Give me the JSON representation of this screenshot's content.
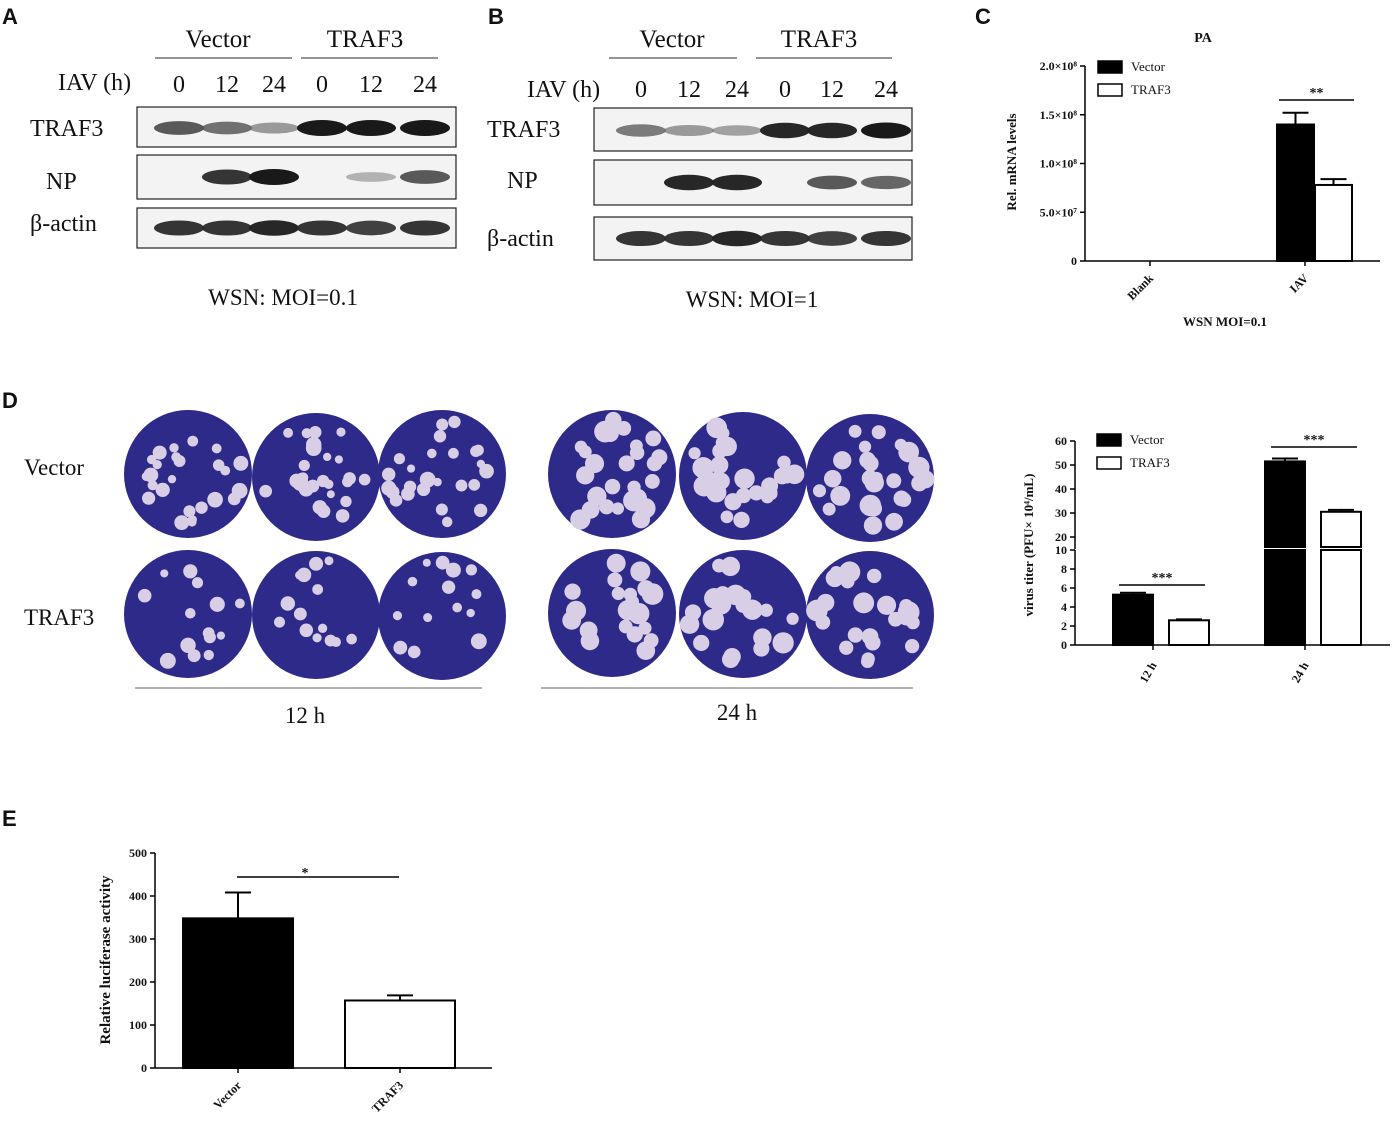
{
  "panels": {
    "a": "A",
    "b": "B",
    "c": "C",
    "d": "D",
    "e": "E"
  },
  "blot_a": {
    "group1": "Vector",
    "group2": "TRAF3",
    "time_label": "IAV (h)",
    "lanes": [
      "0",
      "12",
      "24",
      "0",
      "12",
      "24"
    ],
    "rows": [
      "TRAF3",
      "NP",
      "β-actin"
    ],
    "caption": "WSN: MOI=0.1",
    "band_intensity": {
      "TRAF3": [
        0.75,
        0.65,
        0.45,
        1.0,
        1.0,
        1.0
      ],
      "NP": [
        0.0,
        0.9,
        1.0,
        0.0,
        0.3,
        0.75
      ],
      "β-actin": [
        0.9,
        0.9,
        0.95,
        0.9,
        0.85,
        0.9
      ]
    }
  },
  "blot_b": {
    "group1": "Vector",
    "group2": "TRAF3",
    "time_label": "IAV (h)",
    "lanes": [
      "0",
      "12",
      "24",
      "0",
      "12",
      "24"
    ],
    "rows": [
      "TRAF3",
      "NP",
      "β-actin"
    ],
    "caption": "WSN: MOI=1",
    "band_intensity": {
      "TRAF3": [
        0.6,
        0.45,
        0.4,
        0.95,
        0.95,
        1.0
      ],
      "NP": [
        0.0,
        0.95,
        0.95,
        0.0,
        0.75,
        0.7
      ],
      "β-actin": [
        0.9,
        0.9,
        0.95,
        0.9,
        0.85,
        0.9
      ]
    }
  },
  "plaque": {
    "rows": [
      "Vector",
      "TRAF3"
    ],
    "groups": [
      "12 h",
      "24 h"
    ],
    "colors": {
      "well": "#2e2a8a",
      "plaque": "#d8cfe6"
    }
  },
  "colors": {
    "filled": "#000000",
    "open": "#ffffff"
  },
  "chart_data": [
    {
      "id": "C",
      "type": "bar",
      "title": "PA",
      "categories": [
        "Blank",
        "IAV"
      ],
      "series": [
        {
          "name": "Vector",
          "values": [
            0,
            140000000
          ],
          "errors": [
            0,
            12000000
          ]
        },
        {
          "name": "TRAF3",
          "values": [
            0,
            78000000
          ],
          "errors": [
            0,
            6000000
          ]
        }
      ],
      "xlabel": "WSN MOI=0.1",
      "ylabel": "Rel. mRNA levels",
      "ylim": [
        0,
        200000000
      ],
      "yticks": [
        "0",
        "5.0×10⁷",
        "1.0×10⁸",
        "1.5×10⁸",
        "2.0×10⁸"
      ],
      "significance": [
        {
          "category": "IAV",
          "label": "**"
        }
      ],
      "legend": "top-left"
    },
    {
      "id": "D",
      "type": "bar",
      "categories": [
        "12 h",
        "24 h"
      ],
      "series": [
        {
          "name": "Vector",
          "values": [
            5.3,
            51.5
          ],
          "errors": [
            0.2,
            1.2
          ]
        },
        {
          "name": "TRAF3",
          "values": [
            2.6,
            30.5
          ],
          "errors": [
            0.1,
            0.8
          ]
        }
      ],
      "ylabel": "virus titer (PFU× 10⁴/mL)",
      "broken_axis": {
        "lower": [
          0,
          10
        ],
        "upper": [
          10,
          60
        ]
      },
      "yticks_lower": [
        "0",
        "2",
        "4",
        "6",
        "8",
        "10"
      ],
      "yticks_upper": [
        "20",
        "30",
        "40",
        "50",
        "60"
      ],
      "significance": [
        {
          "category": "12 h",
          "label": "***"
        },
        {
          "category": "24 h",
          "label": "***"
        }
      ],
      "legend": "top-left"
    },
    {
      "id": "E",
      "type": "bar",
      "categories": [
        "Vector",
        "TRAF3"
      ],
      "values": [
        348,
        157
      ],
      "errors": [
        60,
        12
      ],
      "ylabel": "Relative luciferase activity",
      "ylim": [
        0,
        500
      ],
      "yticks": [
        "0",
        "100",
        "200",
        "300",
        "400",
        "500"
      ],
      "significance": [
        {
          "label": "*"
        }
      ]
    }
  ]
}
